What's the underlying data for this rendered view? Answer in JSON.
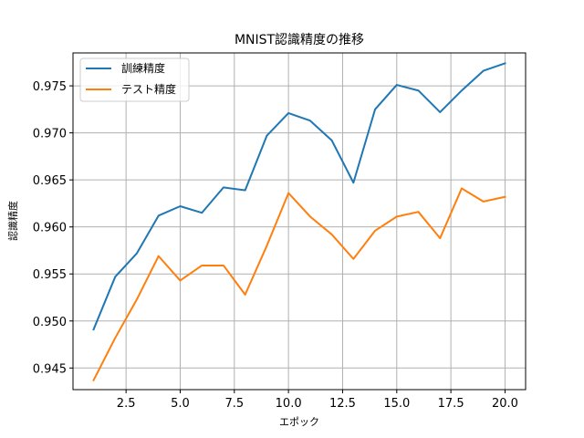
{
  "chart_data": {
    "type": "line",
    "title": "MNIST認識精度の推移",
    "xlabel": "エポック",
    "ylabel": "認識精度",
    "xlim": [
      0.05,
      20.95
    ],
    "ylim": [
      0.9427,
      0.9785
    ],
    "x_ticks": [
      2.5,
      5.0,
      7.5,
      10.0,
      12.5,
      15.0,
      17.5,
      20.0
    ],
    "x_tick_labels": [
      "2.5",
      "5.0",
      "7.5",
      "10.0",
      "12.5",
      "15.0",
      "17.5",
      "20.0"
    ],
    "y_ticks": [
      0.945,
      0.95,
      0.955,
      0.96,
      0.965,
      0.97,
      0.975
    ],
    "y_tick_labels": [
      "0.945",
      "0.950",
      "0.955",
      "0.960",
      "0.965",
      "0.970",
      "0.975"
    ],
    "grid": true,
    "legend_position": "top-left",
    "x": [
      1,
      2,
      3,
      4,
      5,
      6,
      7,
      8,
      9,
      10,
      11,
      12,
      13,
      14,
      15,
      16,
      17,
      18,
      19,
      20
    ],
    "series": [
      {
        "name": "訓練精度",
        "color": "#1f77b4",
        "values": [
          0.9491,
          0.9547,
          0.9572,
          0.9612,
          0.9622,
          0.9615,
          0.9642,
          0.9639,
          0.9697,
          0.9721,
          0.9713,
          0.9692,
          0.9647,
          0.9725,
          0.9751,
          0.9745,
          0.9722,
          0.9745,
          0.9766,
          0.9774
        ]
      },
      {
        "name": "テスト精度",
        "color": "#ff7f0e",
        "values": [
          0.9437,
          0.9482,
          0.9523,
          0.9569,
          0.9543,
          0.9559,
          0.9559,
          0.9528,
          0.958,
          0.9636,
          0.9611,
          0.9592,
          0.9566,
          0.9596,
          0.9611,
          0.9616,
          0.9588,
          0.9641,
          0.9627,
          0.9632
        ]
      }
    ]
  }
}
